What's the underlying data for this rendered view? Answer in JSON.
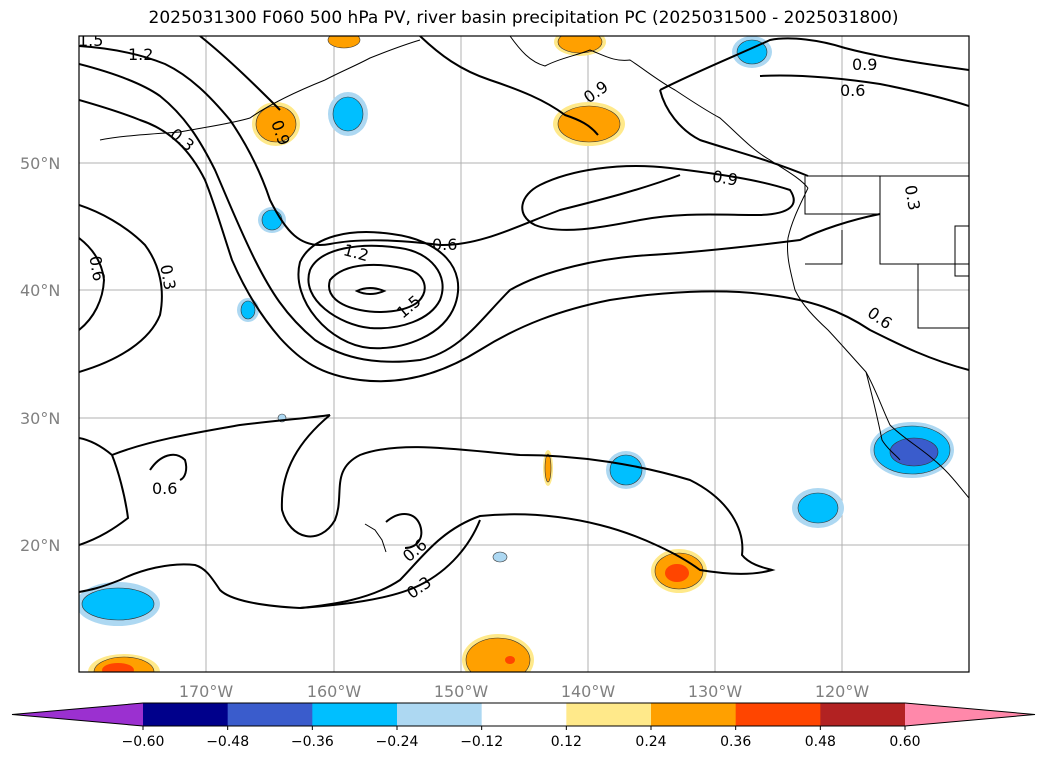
{
  "title": "2025031300 F060 500 hPa PV, river basin precipitation PC (2025031500 - 2025031800)",
  "map": {
    "lat_labels": [
      "50°N",
      "40°N",
      "30°N",
      "20°N"
    ],
    "lon_labels": [
      "170°W",
      "160°W",
      "150°W",
      "140°W",
      "130°W",
      "120°W"
    ],
    "gridlines": true
  },
  "contours": {
    "variable": "500 hPa PV",
    "levels_labeled": [
      "0.3",
      "0.6",
      "0.9",
      "1.2",
      "1.5"
    ],
    "labels": [
      "1.5",
      "1.2",
      "0.3",
      "0.9",
      "0.9",
      "0.9",
      "0.6",
      "0.9",
      "0.3",
      "0.6",
      "1.2",
      "0.6",
      "1.5",
      "0.3",
      "0.6",
      "0.6",
      "0.6",
      "0.3"
    ]
  },
  "colorbar": {
    "ticks": [
      "−0.60",
      "−0.48",
      "−0.36",
      "−0.24",
      "−0.12",
      "0.12",
      "0.24",
      "0.36",
      "0.48",
      "0.60"
    ],
    "colors": [
      "#9b30d0",
      "#00008b",
      "#3a5ccc",
      "#00bfff",
      "#add8f2",
      "#ffffff",
      "#ffe98a",
      "#ffa000",
      "#ff4500",
      "#b22222",
      "#ff88aa"
    ],
    "extend": "both"
  }
}
